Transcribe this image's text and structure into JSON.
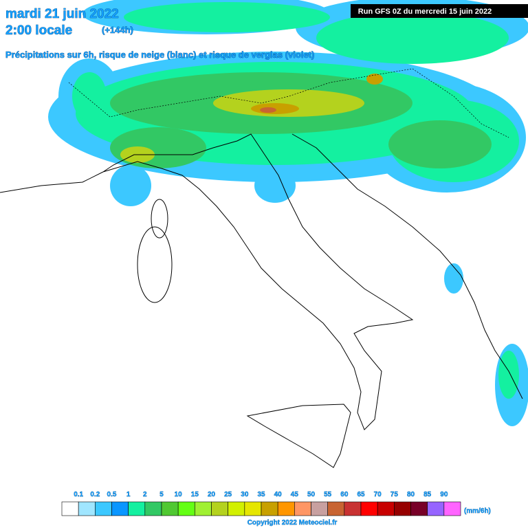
{
  "header": {
    "date": "mardi 21 juin 2022",
    "time": "2:00 locale",
    "lead": "(+144h)",
    "subtitle": "Précipitations sur 6h, risque de neige (blanc) et risque de verglas (violet)",
    "run": "Run GFS 0Z du mercredi 15 juin 2022"
  },
  "legend": {
    "thresholds": [
      "0.1",
      "0.2",
      "0.5",
      "1",
      "2",
      "5",
      "10",
      "15",
      "20",
      "25",
      "30",
      "35",
      "40",
      "45",
      "50",
      "55",
      "60",
      "65",
      "70",
      "75",
      "80",
      "85",
      "90"
    ],
    "colors": [
      "#ffffff",
      "#a0e6ff",
      "#3cc8ff",
      "#0a96ff",
      "#14f0a0",
      "#32c864",
      "#50c832",
      "#64ff14",
      "#a0f032",
      "#b4d21e",
      "#d2f000",
      "#e6e600",
      "#c8a000",
      "#ff9600",
      "#ff9664",
      "#c8a0a0",
      "#c86432",
      "#c83232",
      "#ff0000",
      "#c80000",
      "#960000",
      "#780028",
      "#9664ff",
      "#ff64ff"
    ],
    "unit": "(mm/6h)"
  },
  "footer": {
    "copyright": "Copyright 2022 Meteociel.fr"
  }
}
